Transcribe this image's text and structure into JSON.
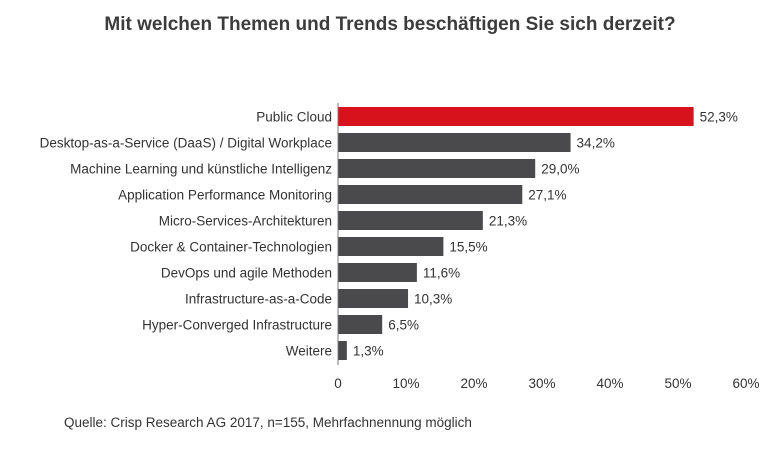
{
  "chart_data": {
    "type": "bar",
    "orientation": "horizontal",
    "title": "Mit welchen Themen und Trends beschäftigen Sie sich derzeit?",
    "categories": [
      "Public Cloud",
      "Desktop-as-a-Service (DaaS) / Digital Workplace",
      "Machine Learning und künstliche Intelligenz",
      "Application Performance Monitoring",
      "Micro-Services-Architekturen",
      "Docker & Container-Technologien",
      "DevOps und agile Methoden",
      "Infrastructure-as-a-Code",
      "Hyper-Converged Infrastructure",
      "Weitere"
    ],
    "values": [
      52.3,
      34.2,
      29.0,
      27.1,
      21.3,
      15.5,
      11.6,
      10.3,
      6.5,
      1.3
    ],
    "value_labels": [
      "52,3%",
      "34,2%",
      "29,0%",
      "27,1%",
      "21,3%",
      "15,5%",
      "11,6%",
      "10,3%",
      "6,5%",
      "1,3%"
    ],
    "xlim": [
      0,
      60
    ],
    "x_ticks": [
      0,
      10,
      20,
      30,
      40,
      50,
      60
    ],
    "x_tick_labels": [
      "0",
      "10%",
      "20%",
      "30%",
      "40%",
      "50%",
      "60%"
    ],
    "xlabel": "",
    "ylabel": "",
    "grid": false,
    "colors": {
      "highlight": "#d7121c",
      "default": "#4a4a4d",
      "text": "#333333"
    },
    "highlight_index": 0
  },
  "source": "Quelle: Crisp Research AG 2017, n=155, Mehrfachnennung möglich"
}
